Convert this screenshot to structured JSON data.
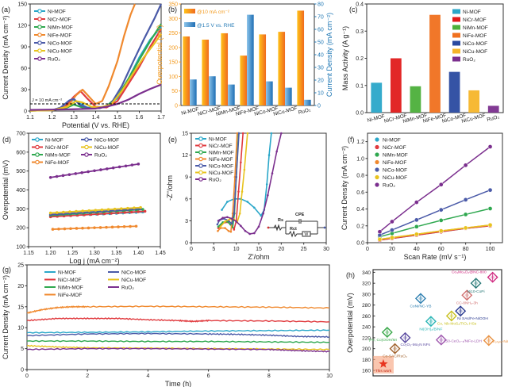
{
  "figure": {
    "panel_labels": [
      "(a)",
      "(b)",
      "(c)",
      "(d)",
      "(e)",
      "(f)",
      "(g)",
      "(h)"
    ]
  },
  "colors": {
    "Ni-MOF": "#2aa7c9",
    "NiCr-MOF": "#e03a3e",
    "NiMn-MOF": "#2fa84f",
    "NiFe-MOF": "#f0892e",
    "NiCo-MOF": "#4a5aa8",
    "NiCu-MOF": "#e8c31e",
    "RuO2": "#7b2f8e",
    "bar_orange": "#f39a1e",
    "bar_blue": "#1f77b4"
  },
  "chart_data": [
    {
      "panel": "(a)",
      "type": "line",
      "title": "",
      "xlabel": "Potential (V vs. RHE)",
      "ylabel": "Current Density (mA cm⁻²)",
      "xlim": [
        1.1,
        1.7
      ],
      "ylim": [
        0,
        150
      ],
      "xticks": [
        "1.1",
        "1.2",
        "1.3",
        "1.4",
        "1.5",
        "1.6",
        "1.7"
      ],
      "yticks": [
        "0",
        "30",
        "60",
        "90",
        "120",
        "150"
      ],
      "annotation": "J = 10 mA cm⁻²",
      "reference_line": 10,
      "legend": "top-left",
      "series": [
        {
          "name": "Ni-MOF",
          "x": [
            1.1,
            1.2,
            1.25,
            1.28,
            1.3,
            1.33,
            1.36,
            1.4,
            1.45,
            1.5,
            1.55,
            1.6,
            1.65,
            1.7
          ],
          "y": [
            0.5,
            1,
            4,
            12,
            16,
            10,
            5,
            4,
            6,
            18,
            45,
            75,
            100,
            118
          ]
        },
        {
          "name": "NiCr-MOF",
          "x": [
            1.1,
            1.2,
            1.26,
            1.3,
            1.33,
            1.36,
            1.4,
            1.45,
            1.5,
            1.55,
            1.6,
            1.65,
            1.7
          ],
          "y": [
            0.5,
            1,
            6,
            20,
            28,
            18,
            6,
            5,
            14,
            38,
            62,
            90,
            115
          ]
        },
        {
          "name": "NiMn-MOF",
          "x": [
            1.1,
            1.2,
            1.27,
            1.3,
            1.32,
            1.35,
            1.4,
            1.45,
            1.5,
            1.55,
            1.6,
            1.65,
            1.7
          ],
          "y": [
            0.5,
            1,
            5,
            9,
            7,
            4,
            4,
            7,
            20,
            45,
            72,
            98,
            122
          ]
        },
        {
          "name": "NiFe-MOF",
          "x": [
            1.1,
            1.2,
            1.27,
            1.31,
            1.34,
            1.37,
            1.4,
            1.43,
            1.46,
            1.5,
            1.53,
            1.56,
            1.58
          ],
          "y": [
            0.5,
            1,
            6,
            22,
            30,
            20,
            10,
            14,
            35,
            70,
            105,
            135,
            150
          ]
        },
        {
          "name": "NiCo-MOF",
          "x": [
            1.1,
            1.2,
            1.24,
            1.28,
            1.3,
            1.33,
            1.37,
            1.42,
            1.47,
            1.52,
            1.57,
            1.62,
            1.67,
            1.7
          ],
          "y": [
            0.5,
            1,
            5,
            15,
            17,
            8,
            4,
            4,
            10,
            35,
            68,
            100,
            130,
            150
          ]
        },
        {
          "name": "NiCu-MOF",
          "x": [
            1.1,
            1.2,
            1.27,
            1.31,
            1.34,
            1.38,
            1.42,
            1.47,
            1.52,
            1.57,
            1.62,
            1.67,
            1.7
          ],
          "y": [
            0.5,
            1,
            6,
            14,
            12,
            6,
            5,
            9,
            28,
            52,
            75,
            95,
            108
          ]
        },
        {
          "name": "RuO₂",
          "x": [
            1.1,
            1.2,
            1.3,
            1.35,
            1.4,
            1.45,
            1.5,
            1.55,
            1.6,
            1.65,
            1.7
          ],
          "y": [
            1.5,
            2,
            2.5,
            3,
            3.5,
            6,
            10,
            16,
            24,
            31,
            37
          ]
        }
      ]
    },
    {
      "panel": "(b)",
      "type": "bar",
      "categories": [
        "Ni-MOF",
        "NiCr-MOF",
        "NiMn-MOF",
        "NiFe-MOF",
        "NiCo-MOF",
        "NiCu-MOF",
        "RuO₂"
      ],
      "ylabel": "Overpotential (mV)",
      "y2label": "Current Density (mA cm⁻²)",
      "ylim": [
        0,
        350
      ],
      "y2lim": [
        0,
        80
      ],
      "yticks": [
        "0",
        "50",
        "100",
        "150",
        "200",
        "250",
        "300",
        "350"
      ],
      "y2ticks": [
        "0",
        "10",
        "20",
        "30",
        "40",
        "50",
        "60",
        "70",
        "80"
      ],
      "legend": "top-left",
      "series": [
        {
          "name": "@10 mA cm⁻²",
          "axis": "left",
          "values": [
            238,
            227,
            249,
            172,
            245,
            254,
            327
          ]
        },
        {
          "name": "@1.5 V vs. RHE",
          "axis": "right",
          "values": [
            20.5,
            23,
            16.5,
            71.5,
            19,
            14,
            4.5
          ]
        }
      ]
    },
    {
      "panel": "(c)",
      "type": "bar",
      "categories": [
        "Ni-MOF",
        "NiCr-MOF",
        "NiMn-MOF",
        "NiFe-MOF",
        "NiCo-MOF",
        "NiCu-MOF",
        "RuO₂"
      ],
      "values": [
        0.11,
        0.2,
        0.097,
        0.36,
        0.15,
        0.082,
        0.025
      ],
      "ylabel": "Mass Activity (A g⁻¹)",
      "ylim": [
        0,
        0.4
      ],
      "yticks": [
        "0.0",
        "0.1",
        "0.2",
        "0.3",
        "0.4"
      ],
      "legend": "top-right"
    },
    {
      "panel": "(d)",
      "type": "line",
      "xlabel": "Log j (mA cm⁻²)",
      "ylabel": "Overpotential (mV)",
      "xlim": [
        1.15,
        1.45
      ],
      "ylim": [
        100,
        700
      ],
      "xticks": [
        "1.15",
        "1.20",
        "1.25",
        "1.30",
        "1.35",
        "1.40",
        "1.45"
      ],
      "yticks": [
        "100",
        "200",
        "300",
        "400",
        "500",
        "600",
        "700"
      ],
      "legend": "top-left",
      "series": [
        {
          "name": "Ni-MOF",
          "x": [
            1.2,
            1.41
          ],
          "y": [
            260,
            283
          ]
        },
        {
          "name": "NiCr-MOF",
          "x": [
            1.2,
            1.415
          ],
          "y": [
            258,
            287
          ]
        },
        {
          "name": "NiMn-MOF",
          "x": [
            1.2,
            1.41
          ],
          "y": [
            266,
            297
          ]
        },
        {
          "name": "NiFe-MOF",
          "x": [
            1.205,
            1.395
          ],
          "y": [
            192,
            208
          ]
        },
        {
          "name": "NiCo-MOF",
          "x": [
            1.2,
            1.405
          ],
          "y": [
            270,
            300
          ]
        },
        {
          "name": "NiCu-MOF",
          "x": [
            1.2,
            1.405
          ],
          "y": [
            278,
            307
          ]
        },
        {
          "name": "RuO₂",
          "x": [
            1.2,
            1.4
          ],
          "y": [
            466,
            537
          ]
        }
      ]
    },
    {
      "panel": "(e)",
      "type": "line",
      "xlabel": "Z'/ohm",
      "ylabel": "-Z''/ohm",
      "xlim": [
        0,
        30
      ],
      "ylim": [
        0,
        15
      ],
      "xticks": [
        "0",
        "5",
        "10",
        "15",
        "20",
        "25",
        "30"
      ],
      "yticks": [
        "0",
        "3",
        "6",
        "9",
        "12",
        "15"
      ],
      "legend": "top-left",
      "inset_circuit": {
        "labels": [
          "Rs",
          "CPE",
          "Rct",
          "W"
        ]
      },
      "series": [
        {
          "name": "Ni-MOF",
          "x": [
            6.8,
            8,
            9.5,
            11,
            12.5,
            14,
            15.5,
            16.2,
            16.8,
            17.3,
            17.8
          ],
          "y": [
            4.5,
            5.6,
            6,
            6,
            5.6,
            4.8,
            3.7,
            4.5,
            8,
            12,
            15
          ]
        },
        {
          "name": "NiCr-MOF",
          "x": [
            6,
            7,
            8.2,
            9,
            9.5,
            10,
            10.5,
            11,
            11.5
          ],
          "y": [
            2,
            2.7,
            2.8,
            2.3,
            1.8,
            3,
            7,
            11,
            15
          ]
        },
        {
          "name": "NiMn-MOF",
          "x": [
            6,
            7,
            8,
            8.7,
            9.2,
            9.6,
            10,
            10.5
          ],
          "y": [
            2.2,
            2.8,
            2.9,
            2.5,
            2.1,
            4,
            9,
            15
          ]
        },
        {
          "name": "NiFe-MOF",
          "x": [
            5.9,
            6.5,
            7.5,
            8.3,
            8.8,
            9.2,
            9.7,
            10.2
          ],
          "y": [
            1.6,
            2,
            2,
            1.6,
            1.5,
            4,
            9,
            15
          ]
        },
        {
          "name": "NiCo-MOF",
          "x": [
            5.8,
            6.3,
            7.3,
            8.3,
            9,
            9.5,
            10,
            10.6
          ],
          "y": [
            2.5,
            3.1,
            3.3,
            3,
            2.6,
            4,
            9,
            15
          ]
        },
        {
          "name": "NiCu-MOF",
          "x": [
            6.5,
            7.5,
            8.5,
            9.5,
            10.2,
            10.8,
            11.3,
            11.8,
            12.5
          ],
          "y": [
            2.2,
            2.9,
            3.2,
            3.2,
            2.8,
            4,
            7,
            10,
            15
          ]
        },
        {
          "name": "RuO₂",
          "x": [
            6,
            7,
            8,
            9,
            10,
            11,
            12,
            13,
            14,
            15,
            16,
            17,
            18,
            19,
            20
          ],
          "y": [
            3,
            3.4,
            3.5,
            3.3,
            2.9,
            2.3,
            1.6,
            1.2,
            1.3,
            2.2,
            4,
            6.5,
            9.5,
            12.5,
            15
          ]
        }
      ]
    },
    {
      "panel": "(f)",
      "type": "scatter",
      "xlabel": "Scan Rate (mV s⁻¹)",
      "ylabel": "Current Density (mA cm⁻²)",
      "xlim": [
        0,
        110
      ],
      "ylim": [
        0,
        1.3
      ],
      "xticks": [
        "0",
        "20",
        "40",
        "60",
        "80",
        "100"
      ],
      "yticks": [
        "0.0",
        "0.2",
        "0.4",
        "0.6",
        "0.8",
        "1.0",
        "1.2"
      ],
      "legend": "top-left",
      "x": [
        10,
        20,
        40,
        60,
        80,
        100
      ],
      "series": [
        {
          "name": "Ni-MOF",
          "values": [
            0.03,
            0.05,
            0.09,
            0.13,
            0.17,
            0.2
          ]
        },
        {
          "name": "NiCr-MOF",
          "values": [
            0.03,
            0.05,
            0.09,
            0.13,
            0.17,
            0.2
          ]
        },
        {
          "name": "NiMn-MOF",
          "values": [
            0.07,
            0.11,
            0.19,
            0.265,
            0.335,
            0.405
          ]
        },
        {
          "name": "NiFe-MOF",
          "values": [
            0.04,
            0.06,
            0.1,
            0.14,
            0.175,
            0.21
          ]
        },
        {
          "name": "NiCo-MOF",
          "values": [
            0.09,
            0.15,
            0.27,
            0.39,
            0.51,
            0.625
          ]
        },
        {
          "name": "NiCu-MOF",
          "values": [
            0.04,
            0.06,
            0.1,
            0.14,
            0.175,
            0.21
          ]
        },
        {
          "name": "RuO₂",
          "values": [
            0.13,
            0.25,
            0.48,
            0.69,
            0.92,
            1.14
          ]
        }
      ]
    },
    {
      "panel": "(g)",
      "type": "line",
      "xlabel": "Time (h)",
      "ylabel": "Current Density (mA cm⁻²)",
      "xlim": [
        0,
        10
      ],
      "ylim": [
        0,
        25
      ],
      "xticks": [
        "0",
        "2",
        "4",
        "6",
        "8",
        "10"
      ],
      "yticks": [
        "0",
        "5",
        "10",
        "15",
        "20",
        "25"
      ],
      "legend": "top-left",
      "series": [
        {
          "name": "Ni-MOF",
          "x": [
            0,
            2,
            4,
            6,
            8,
            10
          ],
          "y": [
            8.8,
            8.9,
            9.0,
            9.2,
            9.3,
            9.4
          ]
        },
        {
          "name": "NiCr-MOF",
          "x": [
            0,
            1,
            2,
            3,
            4,
            5,
            5.5,
            6,
            8,
            10
          ],
          "y": [
            11.7,
            12.2,
            12.2,
            12.2,
            11.9,
            11.7,
            11.5,
            11.7,
            11.6,
            11.4
          ]
        },
        {
          "name": "NiMn-MOF",
          "x": [
            0,
            2,
            4,
            6,
            8,
            10
          ],
          "y": [
            6.8,
            6.8,
            6.7,
            6.7,
            6.6,
            6.5
          ]
        },
        {
          "name": "NiFe-MOF",
          "x": [
            0,
            0.5,
            1,
            1.5,
            2,
            4,
            6,
            8,
            10
          ],
          "y": [
            13.5,
            14.3,
            14.8,
            15.0,
            15.0,
            15.1,
            15.0,
            14.9,
            14.7
          ]
        },
        {
          "name": "NiCo-MOF",
          "x": [
            0,
            2,
            4,
            6,
            7,
            8,
            9,
            10
          ],
          "y": [
            8.1,
            8.5,
            8.6,
            8.5,
            8.4,
            8.2,
            7.9,
            7.8
          ]
        },
        {
          "name": "NiCu-MOF",
          "x": [
            0,
            1,
            2,
            4,
            6,
            8,
            10
          ],
          "y": [
            5.7,
            5.4,
            5.2,
            5.1,
            5.0,
            4.9,
            4.8
          ]
        },
        {
          "name": "RuO₂",
          "x": [
            0,
            2,
            4,
            6,
            8,
            9,
            10
          ],
          "y": [
            4.8,
            5.0,
            5.0,
            4.9,
            4.8,
            4.5,
            4.3
          ]
        }
      ]
    },
    {
      "panel": "(h)",
      "type": "scatter",
      "ylabel": "Overpotential (mV)",
      "ylim": [
        150,
        345
      ],
      "yticks": [
        "160",
        "180",
        "200",
        "220",
        "240",
        "260",
        "280",
        "300",
        "320",
        "340"
      ],
      "points": [
        {
          "label": "This work",
          "value": 172,
          "xpos": 0.08,
          "color": "#e8351e",
          "marker": "star"
        },
        {
          "label": "Co-SAC/RuO₂",
          "value": 200,
          "xpos": 0.17,
          "color": "#a0622d",
          "marker": "diamond"
        },
        {
          "label": "(Fe, Co)OOH/MI",
          "value": 230,
          "xpos": 0.11,
          "color": "#3aa84a",
          "marker": "diamond"
        },
        {
          "label": "Co₂O₃-Mo₂N NFs",
          "value": 220,
          "xpos": 0.25,
          "color": "#5a4aa0",
          "marker": "diamond"
        },
        {
          "label": "CoNi/NC-YB",
          "value": 292,
          "xpos": 0.37,
          "color": "#2e7fb0",
          "marker": "diamond"
        },
        {
          "label": "Ni(OH)₂/B/NF",
          "value": 250,
          "xpos": 0.45,
          "color": "#2ab5b5",
          "marker": "diamond"
        },
        {
          "label": "150-CeO₂₋ₓ/NiFe-LDH",
          "value": 216,
          "xpos": 0.53,
          "color": "#a15bb0",
          "marker": "diamond"
        },
        {
          "label": "Co, Nb-MoS₂/TiO₂ HSs",
          "value": 260,
          "xpos": 0.61,
          "color": "#c8c020",
          "marker": "diamond"
        },
        {
          "label": "Ni SAs/Fe-NiOOH",
          "value": 269,
          "xpos": 0.68,
          "color": "#2a3a90",
          "marker": "diamond"
        },
        {
          "label": "CC-8NH₃-3h",
          "value": 298,
          "xpos": 0.73,
          "color": "#d07070",
          "marker": "diamond"
        },
        {
          "label": "Ni10-CoPi",
          "value": 320,
          "xpos": 0.8,
          "color": "#2a7a78",
          "marker": "diamond"
        },
        {
          "label": "Co₃Mo₃O₂@NC-800",
          "value": 331,
          "xpos": 0.93,
          "color": "#d02a80",
          "marker": "diamond"
        },
        {
          "label": "Ir₁ₙₐₙₒ-NiO",
          "value": 215,
          "xpos": 0.9,
          "color": "#e89040",
          "marker": "diamond"
        }
      ]
    }
  ]
}
